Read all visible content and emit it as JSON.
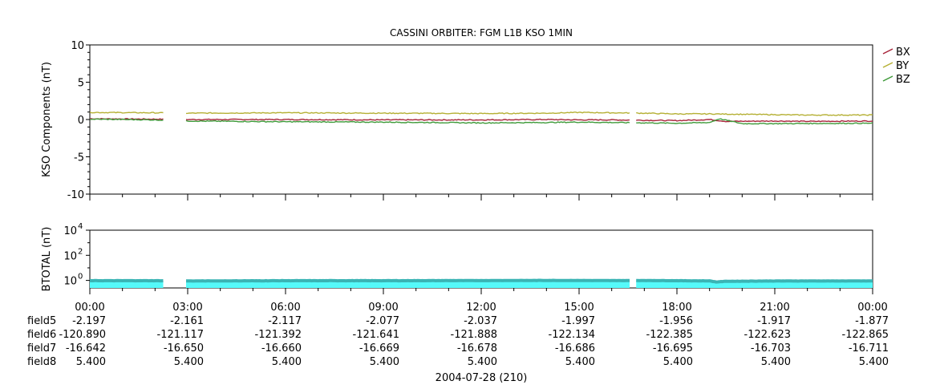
{
  "chart_data": [
    {
      "type": "line",
      "title": "CASSINI ORBITER: FGM L1B KSO 1MIN",
      "ylabel": "KSO Components (nT)",
      "ylim": [
        -10,
        10
      ],
      "yticks": [
        "10",
        "5",
        "0",
        "-5",
        "-10"
      ],
      "yticks_values": [
        10,
        5,
        0,
        -5,
        -10
      ],
      "x_hours_range": [
        0,
        24
      ],
      "gaps_hours": [
        [
          2.25,
          2.95
        ],
        [
          16.55,
          16.75
        ]
      ],
      "legend_position": "top-right outside",
      "series": [
        {
          "name": "BX",
          "color": "#a8243a",
          "x_hours": [
            0,
            2,
            3,
            6,
            9,
            12,
            14,
            15,
            16,
            17,
            18,
            19,
            19.5,
            21,
            22,
            24
          ],
          "values": [
            0.1,
            0.05,
            0.0,
            0.0,
            -0.05,
            -0.05,
            0.0,
            -0.05,
            -0.05,
            -0.1,
            -0.15,
            0.0,
            -0.25,
            -0.2,
            -0.25,
            -0.2
          ]
        },
        {
          "name": "BY",
          "color": "#b5b035",
          "x_hours": [
            0,
            2,
            3,
            6,
            9,
            12,
            14,
            15,
            16,
            17,
            18,
            19,
            20,
            21,
            22,
            24
          ],
          "values": [
            0.95,
            0.9,
            0.85,
            0.9,
            0.85,
            0.8,
            0.85,
            0.95,
            0.9,
            0.85,
            0.75,
            0.75,
            0.7,
            0.65,
            0.6,
            0.6
          ]
        },
        {
          "name": "BZ",
          "color": "#3f9a3a",
          "x_hours": [
            0,
            2,
            3,
            6,
            9,
            12,
            14,
            15,
            16,
            17,
            18,
            19,
            19.3,
            20,
            21,
            24
          ],
          "values": [
            0.05,
            -0.05,
            -0.2,
            -0.3,
            -0.35,
            -0.45,
            -0.4,
            -0.35,
            -0.4,
            -0.45,
            -0.5,
            -0.4,
            0.1,
            -0.55,
            -0.55,
            -0.5
          ]
        }
      ]
    },
    {
      "type": "area",
      "ylabel": "BTOTAL (nT)",
      "yscale": "log",
      "ylim_log10": [
        -0.6,
        4
      ],
      "yticks_exponents": [
        4,
        2,
        0
      ],
      "ytick_base": "10",
      "gaps_hours": [
        [
          2.25,
          2.95
        ],
        [
          16.55,
          16.75
        ]
      ],
      "series": [
        {
          "name": "BTOTAL",
          "color": "#55fafa",
          "line_color": "#3ab4b4",
          "x_hours": [
            0,
            2,
            3,
            6,
            9,
            12,
            14,
            16,
            17,
            18,
            19,
            19.2,
            19.5,
            21,
            24
          ],
          "values": [
            0.95,
            0.95,
            0.9,
            0.95,
            0.95,
            0.97,
            1.0,
            0.97,
            0.98,
            0.95,
            0.92,
            0.75,
            0.85,
            0.9,
            0.9
          ]
        }
      ]
    }
  ],
  "xaxis": {
    "tick_labels": [
      "00:00",
      "03:00",
      "06:00",
      "09:00",
      "12:00",
      "15:00",
      "18:00",
      "21:00",
      "00:00"
    ],
    "row_labels": [
      "field5",
      "field6",
      "field7",
      "field8"
    ],
    "rows": [
      [
        "-2.197",
        "-2.161",
        "-2.117",
        "-2.077",
        "-2.037",
        "-1.997",
        "-1.956",
        "-1.917",
        "-1.877"
      ],
      [
        "-120.890",
        "-121.117",
        "-121.392",
        "-121.641",
        "-121.888",
        "-122.134",
        "-122.385",
        "-122.623",
        "-122.865"
      ],
      [
        "-16.642",
        "-16.650",
        "-16.660",
        "-16.669",
        "-16.678",
        "-16.686",
        "-16.695",
        "-16.703",
        "-16.711"
      ],
      [
        "5.400",
        "5.400",
        "5.400",
        "5.400",
        "5.400",
        "5.400",
        "5.400",
        "5.400",
        "5.400"
      ]
    ],
    "date_label": "2004-07-28 (210)"
  }
}
